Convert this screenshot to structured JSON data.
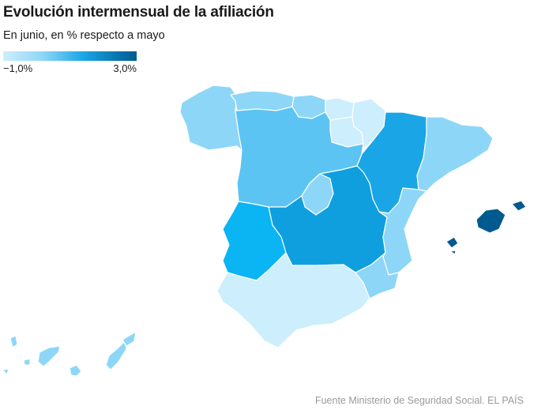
{
  "header": {
    "title": "Evolución intermensual de la afiliación",
    "subtitle": "En junio, en % respecto a mayo"
  },
  "legend": {
    "min_label": "−1,0%",
    "max_label": "3,0%",
    "min_value": -1.0,
    "max_value": 3.0,
    "colors": [
      "#cdeefc",
      "#8dd6f7",
      "#1aa6e6",
      "#005a8f"
    ]
  },
  "source": "Fuente Ministerio de Seguridad Social. EL PAÍS",
  "regions": [
    {
      "name": "Galicia",
      "color": "#8dd6f7"
    },
    {
      "name": "Asturias",
      "color": "#8dd6f7"
    },
    {
      "name": "Cantabria",
      "color": "#8dd6f7"
    },
    {
      "name": "País Vasco",
      "color": "#cdeefc"
    },
    {
      "name": "Navarra",
      "color": "#cdeefc"
    },
    {
      "name": "La Rioja",
      "color": "#cdeefc"
    },
    {
      "name": "Aragón",
      "color": "#1aa6e6"
    },
    {
      "name": "Cataluña",
      "color": "#8dd6f7"
    },
    {
      "name": "Castilla y León",
      "color": "#5cc4f3"
    },
    {
      "name": "Madrid",
      "color": "#8dd6f7"
    },
    {
      "name": "Castilla-La Mancha",
      "color": "#0f9fde"
    },
    {
      "name": "Extremadura",
      "color": "#0bb4f2"
    },
    {
      "name": "Comunidad Valenciana",
      "color": "#8dd6f7"
    },
    {
      "name": "Murcia",
      "color": "#8dd6f7"
    },
    {
      "name": "Andalucía",
      "color": "#cdeefc"
    },
    {
      "name": "Islas Baleares",
      "color": "#005a8f"
    },
    {
      "name": "Canarias",
      "color": "#8dd6f7"
    }
  ]
}
